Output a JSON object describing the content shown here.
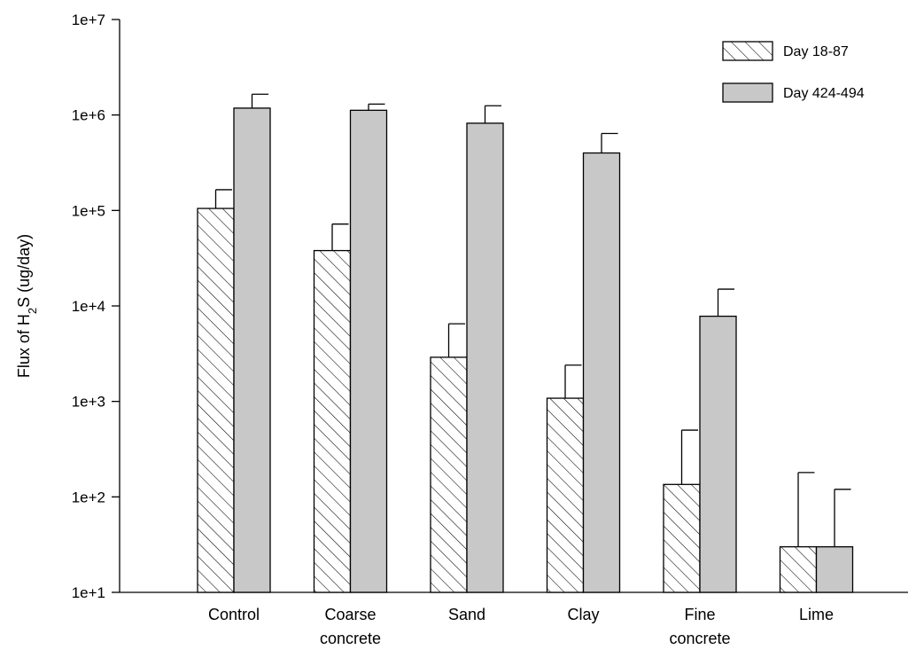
{
  "chart_data": {
    "type": "bar",
    "title": "",
    "ylabel": {
      "prefix": "Flux of H",
      "subscript": "2",
      "suffix": "S (ug/day)"
    },
    "xlabel": "",
    "yscale": "log",
    "ylim": [
      10,
      10000000
    ],
    "yticks": [
      "1e+1",
      "1e+2",
      "1e+3",
      "1e+4",
      "1e+5",
      "1e+6",
      "1e+7"
    ],
    "categories": [
      [
        "Control"
      ],
      [
        "Coarse",
        "concrete"
      ],
      [
        "Sand"
      ],
      [
        "Clay"
      ],
      [
        "Fine",
        "concrete"
      ],
      [
        "Lime"
      ]
    ],
    "series": [
      {
        "name": "Day 18-87",
        "pattern": "hatched",
        "values": [
          105000,
          38000,
          2900,
          1080,
          135,
          30
        ],
        "error_upper": [
          165000,
          72000,
          6500,
          2400,
          500,
          180
        ]
      },
      {
        "name": "Day 424-494",
        "pattern": "solid",
        "values": [
          1180000,
          1120000,
          820000,
          400000,
          7800,
          30
        ],
        "error_upper": [
          1650000,
          1300000,
          1250000,
          640000,
          15000,
          120
        ]
      }
    ],
    "legend_position": "top-right",
    "grid": false,
    "colors": {
      "hatched_fill": "#ffffff",
      "solid_fill": "#c8c8c8",
      "stroke": "#000000"
    }
  }
}
